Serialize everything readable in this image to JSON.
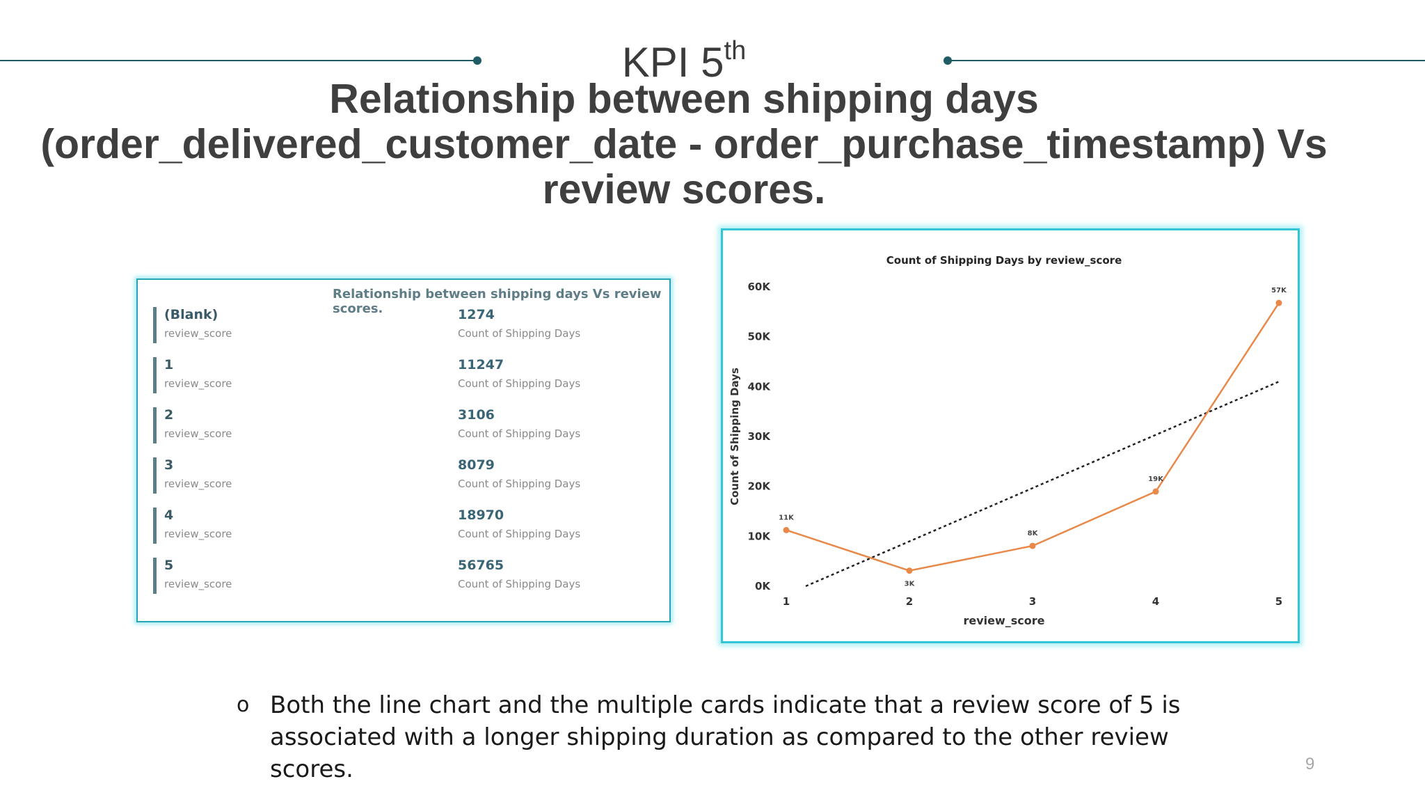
{
  "slide": {
    "kpi_label": "KPI 5",
    "kpi_sup": "th",
    "title_line1": "Relationship between shipping days",
    "title_line2": "(order_delivered_customer_date - order_purchase_timestamp) Vs",
    "title_line3": "review scores.",
    "bullet_symbol": "o",
    "bullet_line1": "Both the line chart and the multiple cards indicate that a review score of 5 is",
    "bullet_line2": "associated with a longer shipping duration as compared to the other review scores.",
    "page_number": "9"
  },
  "cards": {
    "title": "Relationship between shipping days Vs review scores.",
    "items": [
      {
        "name": "(Blank)",
        "name_label": "review_score",
        "value": "1274",
        "value_label": "Count of Shipping Days"
      },
      {
        "name": "1",
        "name_label": "review_score",
        "value": "11247",
        "value_label": "Count of Shipping Days"
      },
      {
        "name": "2",
        "name_label": "review_score",
        "value": "3106",
        "value_label": "Count of Shipping Days"
      },
      {
        "name": "3",
        "name_label": "review_score",
        "value": "8079",
        "value_label": "Count of Shipping Days"
      },
      {
        "name": "4",
        "name_label": "review_score",
        "value": "18970",
        "value_label": "Count of Shipping Days"
      },
      {
        "name": "5",
        "name_label": "review_score",
        "value": "56765",
        "value_label": "Count of Shipping Days"
      }
    ]
  },
  "chart_data": {
    "type": "line",
    "title": "Count of Shipping Days by review_score",
    "xlabel": "review_score",
    "ylabel": "Count of Shipping Days",
    "categories": [
      "1",
      "2",
      "3",
      "4",
      "5"
    ],
    "series": [
      {
        "values": [
          11247,
          3106,
          8079,
          18970,
          56765
        ],
        "data_labels": [
          "11K",
          "3K",
          "8K",
          "19K",
          "57K"
        ],
        "color": "#e8894a"
      }
    ],
    "trend_line": {
      "style": "dotted",
      "color": "#222222",
      "start": 0,
      "end": 41000
    },
    "y_ticks": [
      0,
      10000,
      20000,
      30000,
      40000,
      50000,
      60000
    ],
    "y_tick_labels": [
      "0K",
      "10K",
      "20K",
      "30K",
      "40K",
      "50K",
      "60K"
    ],
    "ylim": [
      0,
      60000
    ],
    "grid": false,
    "legend": "none"
  },
  "colors": {
    "accent_rule": "#1f5c66",
    "card_border": "#25a5b5",
    "chart_border": "#33c5d5"
  }
}
